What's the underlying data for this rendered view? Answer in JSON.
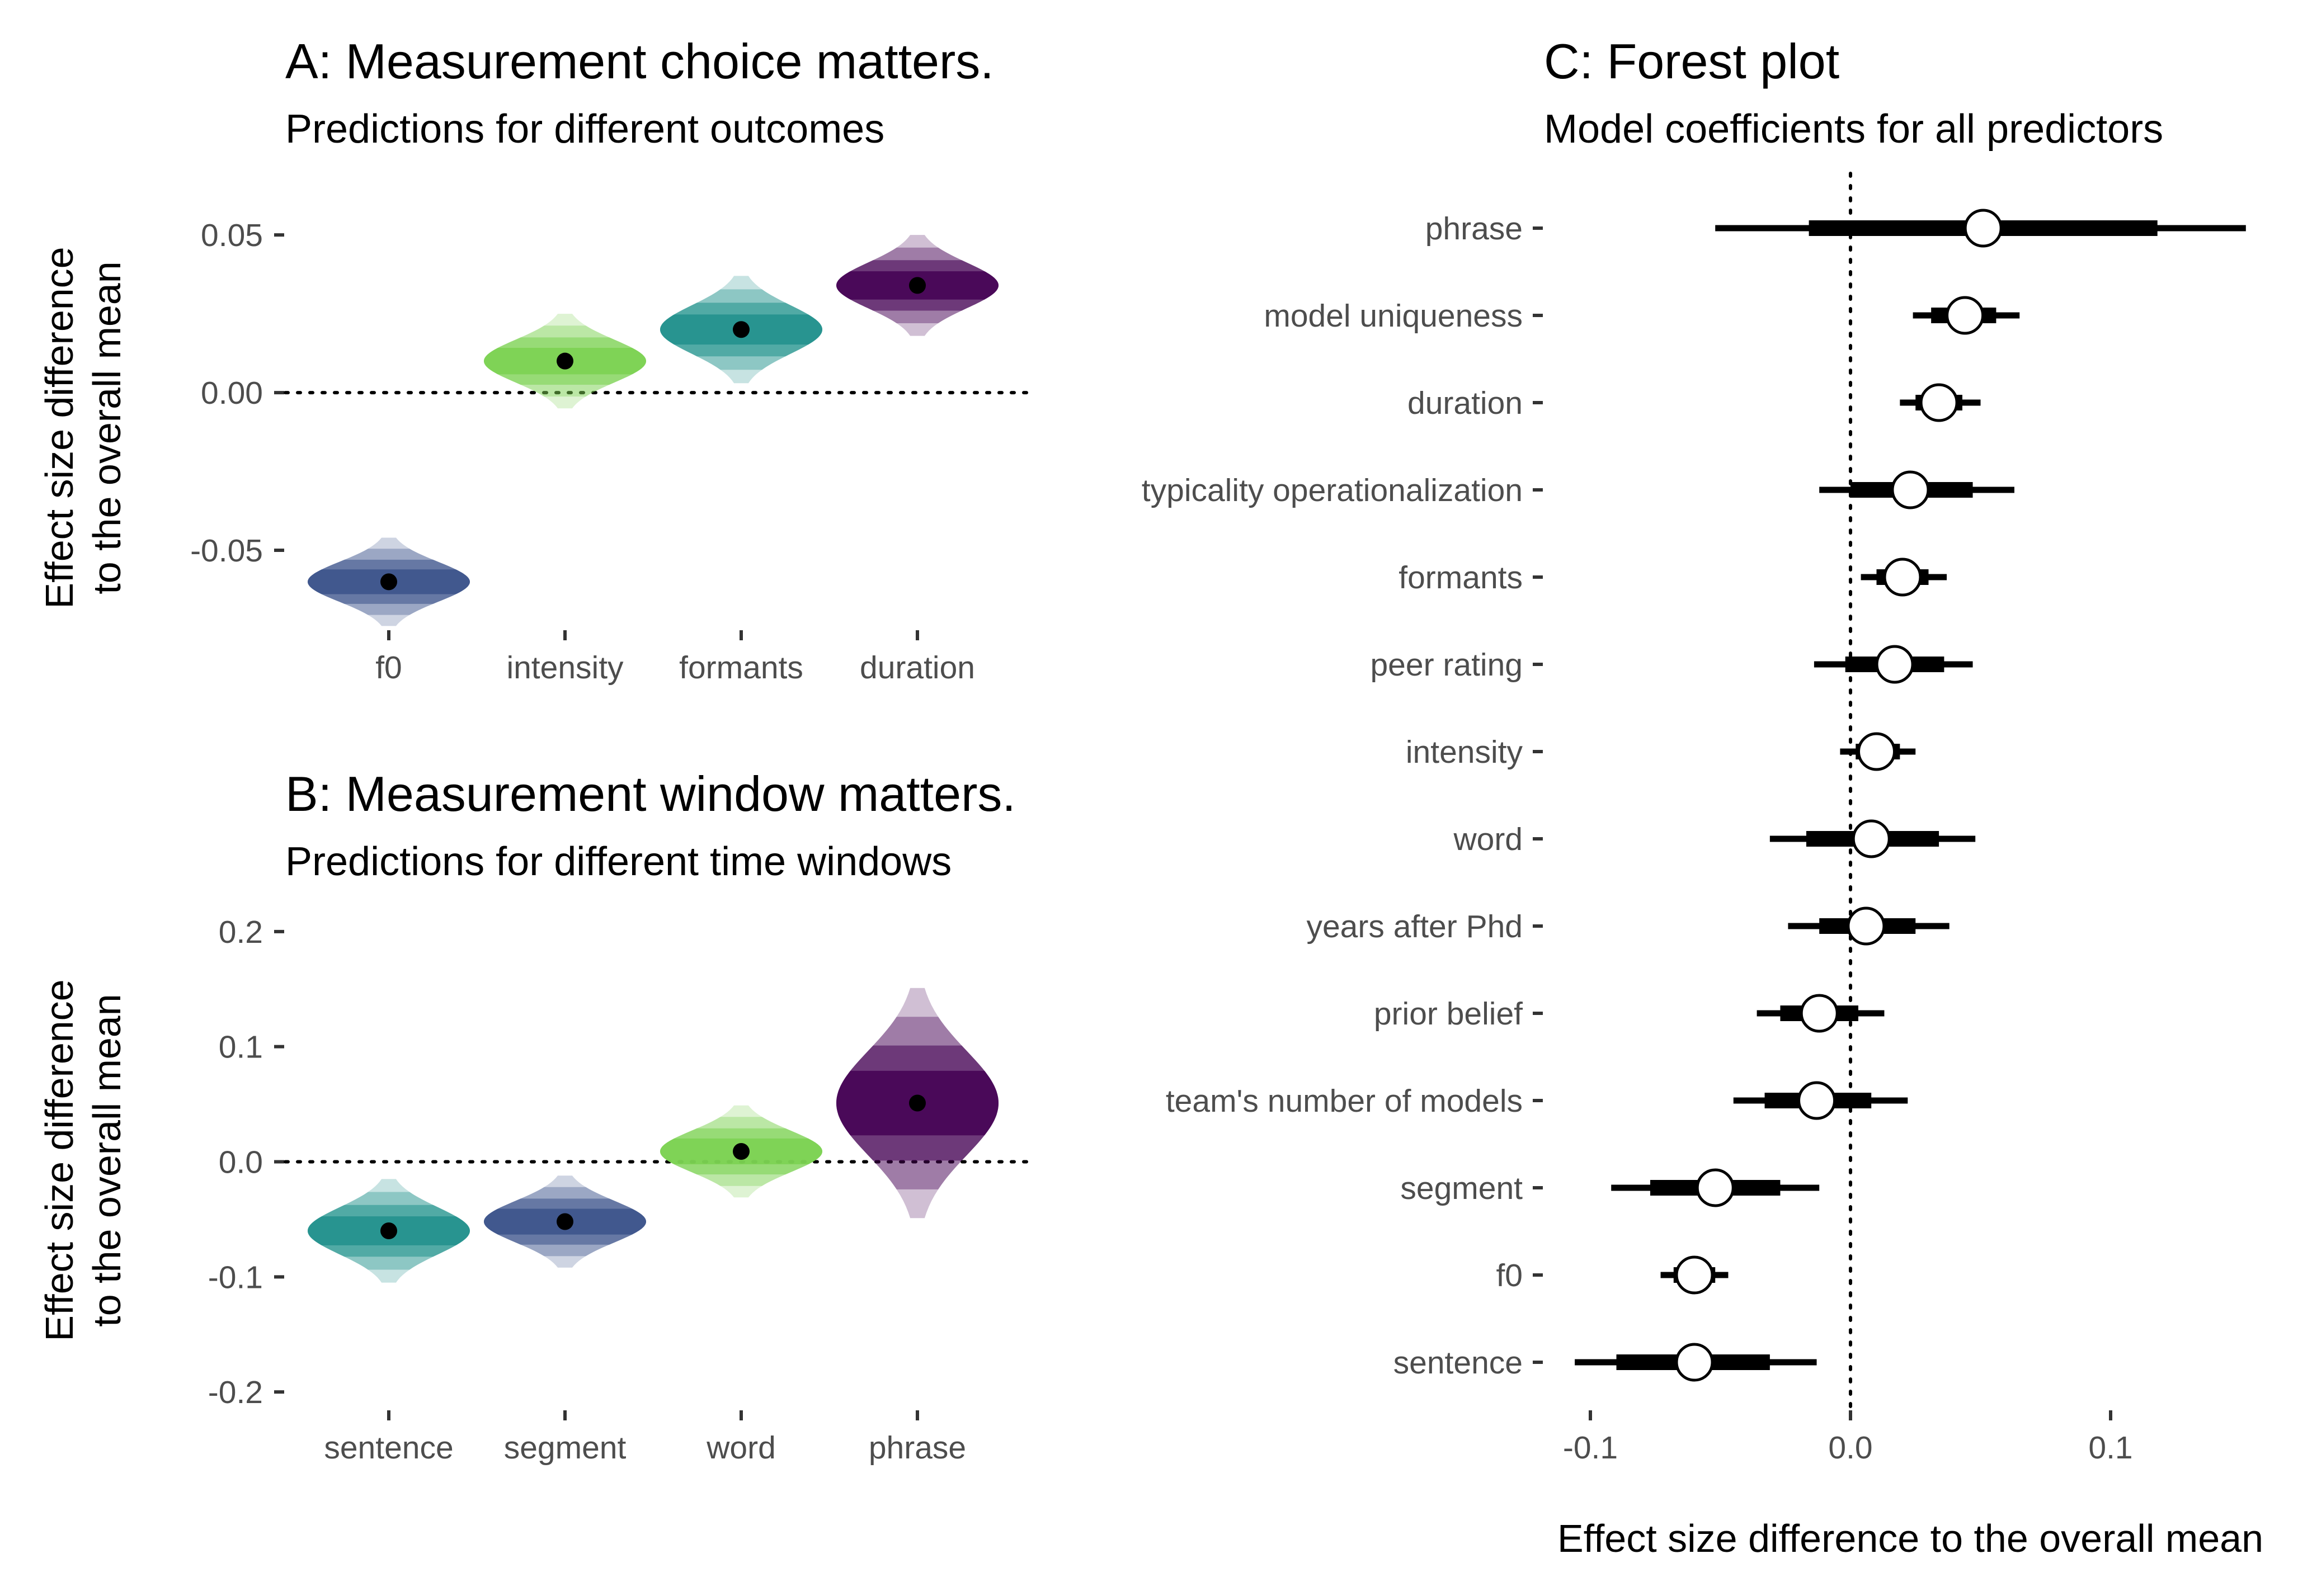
{
  "chart_data": [
    {
      "panel": "A",
      "type": "violin",
      "title": "A: Measurement choice matters.",
      "subtitle": "Predictions for different outcomes",
      "ylabel": [
        "Effect size difference",
        "to the overall mean"
      ],
      "ylim": [
        -0.075,
        0.058
      ],
      "yticks": [
        -0.05,
        0.0,
        0.05
      ],
      "ytick_labels": [
        "-0.05",
        "0.00",
        "0.05"
      ],
      "reference_line": 0,
      "categories": [
        "f0",
        "intensity",
        "formants",
        "duration"
      ],
      "values": [
        -0.06,
        0.01,
        0.02,
        0.034
      ],
      "spread": [
        0.014,
        0.015,
        0.017,
        0.016
      ],
      "colors": [
        "#3b528b",
        "#7ad151",
        "#21918c",
        "#440154"
      ]
    },
    {
      "panel": "B",
      "type": "violin",
      "title": "B: Measurement window matters.",
      "subtitle": "Predictions for different time windows",
      "ylabel": [
        "Effect size difference",
        "to the overall mean"
      ],
      "ylim": [
        -0.215,
        0.215
      ],
      "yticks": [
        -0.2,
        -0.1,
        0.0,
        0.1,
        0.2
      ],
      "ytick_labels": [
        "-0.2",
        "-0.1",
        "0.0",
        "0.1",
        "0.2"
      ],
      "reference_line": 0,
      "categories": [
        "sentence",
        "segment",
        "word",
        "phrase"
      ],
      "values": [
        -0.06,
        -0.052,
        0.009,
        0.051
      ],
      "spread": [
        0.045,
        0.04,
        0.04,
        0.1
      ],
      "colors": [
        "#21918c",
        "#3b528b",
        "#7ad151",
        "#440154"
      ]
    },
    {
      "panel": "C",
      "type": "forest",
      "title": "C: Forest plot",
      "subtitle": "Model coefficients for all predictors",
      "xlabel": "Effect size difference to the overall mean",
      "xlim": [
        -0.11,
        0.16
      ],
      "xticks": [
        -0.1,
        0.0,
        0.1
      ],
      "xtick_labels": [
        "-0.1",
        "0.0",
        "0.1"
      ],
      "reference_line": 0,
      "rows": [
        {
          "label": "phrase",
          "estimate": 0.051,
          "inner": [
            -0.016,
            0.118
          ],
          "outer": [
            -0.052,
            0.152
          ]
        },
        {
          "label": "model uniqueness",
          "estimate": 0.044,
          "inner": [
            0.031,
            0.056
          ],
          "outer": [
            0.024,
            0.065
          ]
        },
        {
          "label": "duration",
          "estimate": 0.034,
          "inner": [
            0.025,
            0.043
          ],
          "outer": [
            0.019,
            0.05
          ]
        },
        {
          "label": "typicality operationalization",
          "estimate": 0.023,
          "inner": [
            0.0,
            0.047
          ],
          "outer": [
            -0.012,
            0.063
          ]
        },
        {
          "label": "formants",
          "estimate": 0.02,
          "inner": [
            0.01,
            0.03
          ],
          "outer": [
            0.004,
            0.037
          ]
        },
        {
          "label": "peer rating",
          "estimate": 0.017,
          "inner": [
            -0.002,
            0.036
          ],
          "outer": [
            -0.014,
            0.047
          ]
        },
        {
          "label": "intensity",
          "estimate": 0.01,
          "inner": [
            0.002,
            0.019
          ],
          "outer": [
            -0.004,
            0.025
          ]
        },
        {
          "label": "word",
          "estimate": 0.008,
          "inner": [
            -0.017,
            0.034
          ],
          "outer": [
            -0.031,
            0.048
          ]
        },
        {
          "label": "years after Phd",
          "estimate": 0.006,
          "inner": [
            -0.012,
            0.025
          ],
          "outer": [
            -0.024,
            0.038
          ]
        },
        {
          "label": "prior belief",
          "estimate": -0.012,
          "inner": [
            -0.027,
            0.003
          ],
          "outer": [
            -0.036,
            0.013
          ]
        },
        {
          "label": "team's number of models",
          "estimate": -0.013,
          "inner": [
            -0.033,
            0.008
          ],
          "outer": [
            -0.045,
            0.022
          ]
        },
        {
          "label": "segment",
          "estimate": -0.052,
          "inner": [
            -0.077,
            -0.027
          ],
          "outer": [
            -0.092,
            -0.012
          ]
        },
        {
          "label": "f0",
          "estimate": -0.06,
          "inner": [
            -0.068,
            -0.052
          ],
          "outer": [
            -0.073,
            -0.047
          ]
        },
        {
          "label": "sentence",
          "estimate": -0.06,
          "inner": [
            -0.09,
            -0.031
          ],
          "outer": [
            -0.106,
            -0.013
          ]
        }
      ]
    }
  ]
}
